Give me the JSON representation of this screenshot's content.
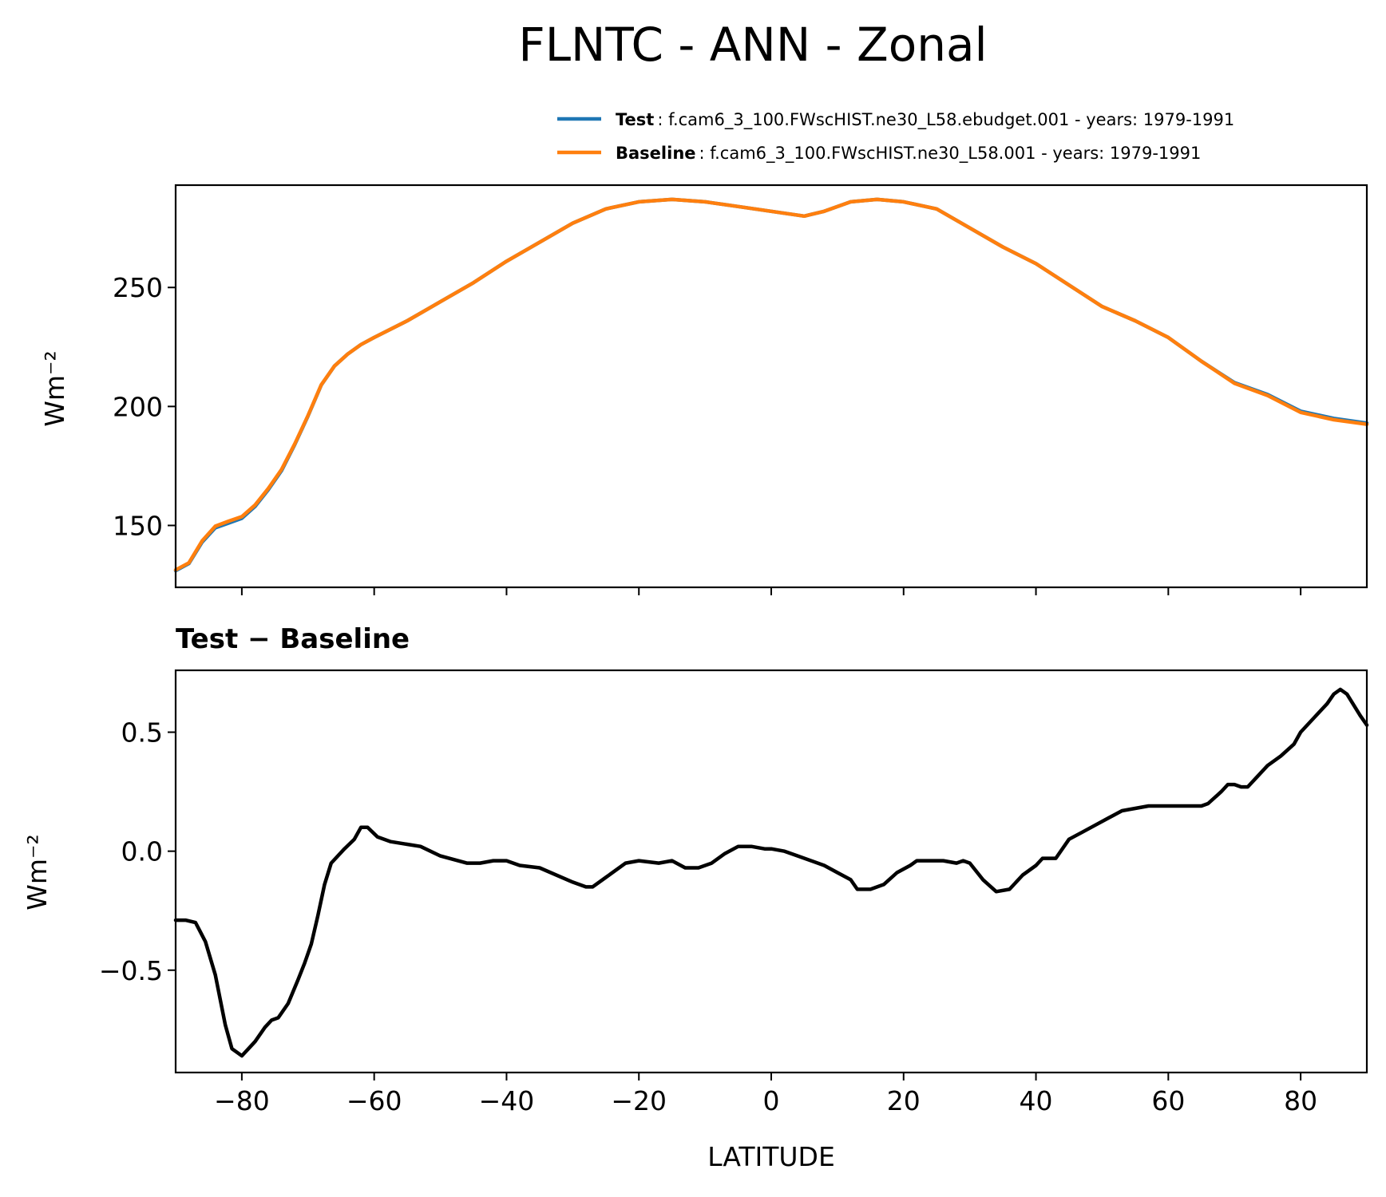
{
  "figure": {
    "title": "FLNTC - ANN - Zonal"
  },
  "legend": {
    "entries": [
      {
        "label": "Test",
        "text": ": f.cam6_3_100.FWscHIST.ne30_L58.ebudget.001 - years: 1979-1991",
        "color": "#1f77b4"
      },
      {
        "label": "Baseline",
        "text": ": f.cam6_3_100.FWscHIST.ne30_L58.001 - years: 1979-1991",
        "color": "#ff7f0e"
      }
    ]
  },
  "chart_data": [
    {
      "type": "line",
      "panel": "top",
      "title": "",
      "xlabel": "",
      "ylabel": "Wm⁻²",
      "xlim": [
        -90,
        90
      ],
      "ylim": [
        124,
        293
      ],
      "xticks": [
        -80,
        -60,
        -40,
        -20,
        0,
        20,
        40,
        60,
        80
      ],
      "yticks": [
        150,
        200,
        250
      ],
      "ytick_labels": [
        "150",
        "200",
        "250"
      ],
      "show_xtick_labels": false,
      "grid": false,
      "legend": "top-right",
      "series": [
        {
          "name": "Test",
          "color": "#1f77b4",
          "x": [
            -90,
            -88,
            -86,
            -84,
            -82,
            -80,
            -78,
            -76,
            -74,
            -72,
            -70,
            -68,
            -66,
            -64,
            -62,
            -60,
            -55,
            -50,
            -45,
            -40,
            -35,
            -30,
            -25,
            -20,
            -15,
            -10,
            -5,
            0,
            5,
            8,
            12,
            16,
            20,
            25,
            30,
            35,
            40,
            45,
            50,
            55,
            60,
            65,
            70,
            75,
            80,
            85,
            90
          ],
          "values": [
            131,
            134,
            143,
            149,
            151,
            153,
            158,
            165,
            173,
            184,
            196,
            209,
            217,
            222,
            226,
            229,
            236,
            244,
            252,
            261,
            269,
            277,
            283,
            286,
            287,
            286,
            284,
            282,
            280,
            282,
            286,
            287,
            286,
            283,
            275,
            267,
            260,
            251,
            242,
            236,
            229,
            219,
            210,
            205,
            198,
            195,
            193
          ]
        },
        {
          "name": "Baseline",
          "color": "#ff7f0e",
          "x": [
            -90,
            -88,
            -86,
            -84,
            -82,
            -80,
            -78,
            -76,
            -74,
            -72,
            -70,
            -68,
            -66,
            -64,
            -62,
            -60,
            -55,
            -50,
            -45,
            -40,
            -35,
            -30,
            -25,
            -20,
            -15,
            -10,
            -5,
            0,
            5,
            8,
            12,
            16,
            20,
            25,
            30,
            35,
            40,
            45,
            50,
            55,
            60,
            65,
            70,
            75,
            80,
            85,
            90
          ],
          "values": [
            131.3,
            134.3,
            143.5,
            149.7,
            151.8,
            153.7,
            158.6,
            165.5,
            173.5,
            184.3,
            196.2,
            209.1,
            217,
            222,
            226,
            229,
            236,
            244,
            252,
            261,
            269,
            277,
            283,
            286,
            287,
            286,
            284,
            282,
            280,
            282,
            286,
            287,
            286,
            283,
            275,
            267,
            260,
            251,
            242,
            236,
            229,
            219,
            209.7,
            204.6,
            197.5,
            194.4,
            192.5
          ]
        }
      ]
    },
    {
      "type": "line",
      "panel": "bottom",
      "title": "Test − Baseline",
      "xlabel": "LATITUDE",
      "ylabel": "Wm⁻²",
      "xlim": [
        -90,
        90
      ],
      "ylim": [
        -0.93,
        0.76
      ],
      "xticks": [
        -80,
        -60,
        -40,
        -20,
        0,
        20,
        40,
        60,
        80
      ],
      "xtick_labels": [
        "−80",
        "−60",
        "−40",
        "−20",
        "0",
        "20",
        "40",
        "60",
        "80"
      ],
      "yticks": [
        -0.5,
        0.0,
        0.5
      ],
      "ytick_labels": [
        "−0.5",
        "0.0",
        "0.5"
      ],
      "grid": false,
      "series": [
        {
          "name": "",
          "color": "#000000",
          "x": [
            -90,
            -88.5,
            -87,
            -85.5,
            -84,
            -82.5,
            -81.5,
            -80,
            -79,
            -78,
            -76.5,
            -75.5,
            -74.5,
            -73,
            -71.5,
            -70.5,
            -69.5,
            -68.5,
            -67.5,
            -66.5,
            -64.5,
            -63,
            -62,
            -61,
            -59.5,
            -57.5,
            -53,
            -50,
            -46,
            -44,
            -42,
            -40,
            -38,
            -35,
            -30,
            -28,
            -27,
            -25,
            -22,
            -20,
            -17,
            -15,
            -13,
            -11,
            -9,
            -7,
            -5,
            -3,
            -1,
            0,
            2,
            4,
            8,
            10,
            12,
            13,
            15,
            17,
            19,
            21,
            22,
            24,
            26,
            28,
            29,
            30,
            32,
            34,
            36,
            38,
            40,
            41,
            42,
            43,
            45,
            47,
            49,
            51,
            53,
            55,
            57,
            58,
            60,
            62,
            64,
            65,
            66,
            68,
            69,
            70,
            71,
            72,
            73,
            75,
            77,
            79,
            80,
            82,
            84,
            85,
            86,
            87,
            89,
            90
          ],
          "values": [
            -0.29,
            -0.29,
            -0.3,
            -0.38,
            -0.52,
            -0.73,
            -0.83,
            -0.86,
            -0.83,
            -0.8,
            -0.74,
            -0.71,
            -0.7,
            -0.64,
            -0.54,
            -0.47,
            -0.39,
            -0.27,
            -0.14,
            -0.05,
            0.01,
            0.05,
            0.1,
            0.1,
            0.06,
            0.04,
            0.02,
            -0.02,
            -0.05,
            -0.05,
            -0.04,
            -0.04,
            -0.06,
            -0.07,
            -0.13,
            -0.15,
            -0.15,
            -0.11,
            -0.05,
            -0.04,
            -0.05,
            -0.04,
            -0.07,
            -0.07,
            -0.05,
            -0.01,
            0.02,
            0.02,
            0.01,
            0.01,
            0.0,
            -0.02,
            -0.06,
            -0.09,
            -0.12,
            -0.16,
            -0.16,
            -0.14,
            -0.09,
            -0.06,
            -0.04,
            -0.04,
            -0.04,
            -0.05,
            -0.04,
            -0.05,
            -0.12,
            -0.17,
            -0.16,
            -0.1,
            -0.06,
            -0.03,
            -0.03,
            -0.03,
            0.05,
            0.08,
            0.11,
            0.14,
            0.17,
            0.18,
            0.19,
            0.19,
            0.19,
            0.19,
            0.19,
            0.19,
            0.2,
            0.25,
            0.28,
            0.28,
            0.27,
            0.27,
            0.3,
            0.36,
            0.4,
            0.45,
            0.5,
            0.56,
            0.62,
            0.66,
            0.68,
            0.66,
            0.57,
            0.53
          ]
        }
      ]
    }
  ]
}
